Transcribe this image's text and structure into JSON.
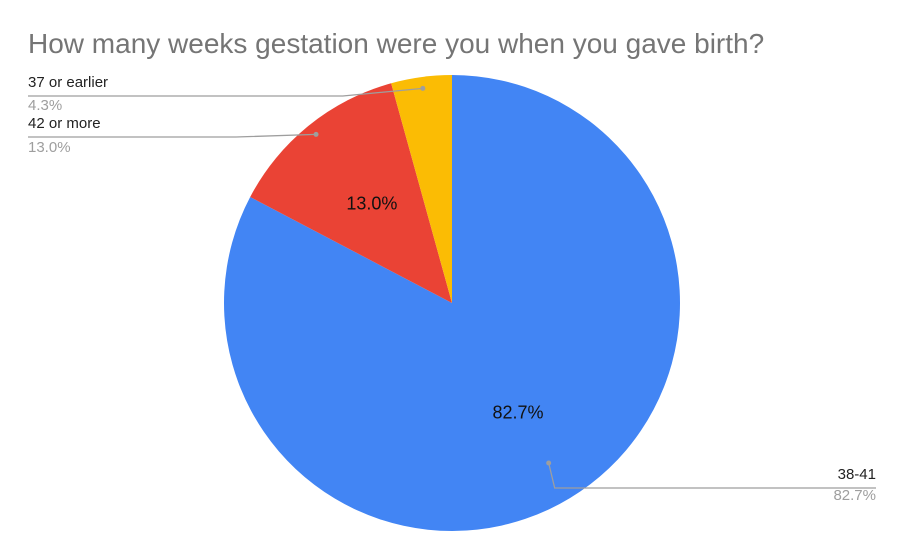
{
  "chart_data": {
    "type": "pie",
    "title": "How many weeks gestation were you when you gave birth?",
    "slices": [
      {
        "name": "38-41",
        "value": 82.7,
        "label": "82.7%",
        "callout_value": "82.7%",
        "color": "#4285F4",
        "show_inner_label": true
      },
      {
        "name": "42 or more",
        "value": 13.0,
        "label": "13.0%",
        "callout_value": "13.0%",
        "color": "#EA4335",
        "show_inner_label": true
      },
      {
        "name": "37 or earlier",
        "value": 4.3,
        "label": "4.3%",
        "callout_value": "4.3%",
        "color": "#FBBC04",
        "show_inner_label": false
      }
    ],
    "start_angle_deg": 0,
    "direction": "clockwise",
    "legend": "callouts"
  },
  "colors": {
    "title": "#757575",
    "callout_label": "#222222",
    "callout_value": "#9e9e9e",
    "callout_line": "#9e9e9e"
  }
}
